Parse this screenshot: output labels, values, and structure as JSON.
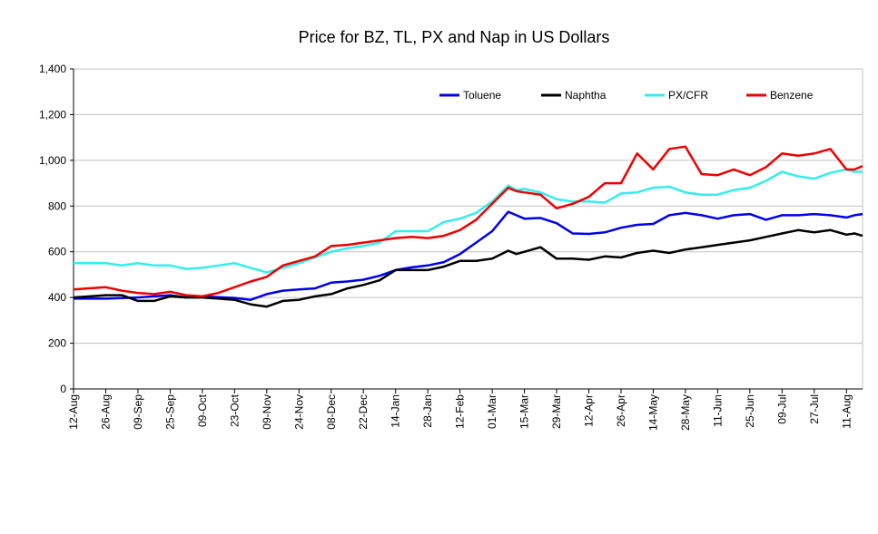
{
  "chart_data": {
    "type": "line",
    "title": "Price for BZ, TL, PX and Nap in US Dollars",
    "xlabel": "",
    "ylabel": "",
    "ylim": [
      0,
      1400
    ],
    "yticks": [
      0,
      200,
      400,
      600,
      800,
      1000,
      1200,
      1400
    ],
    "ytick_labels": [
      "0",
      "200",
      "400",
      "600",
      "800",
      "1,000",
      "1,200",
      "1,400"
    ],
    "grid": true,
    "legend_position": "top-right",
    "categories": [
      "12-Aug",
      "26-Aug",
      "09-Sep",
      "25-Sep",
      "09-Oct",
      "23-Oct",
      "09-Nov",
      "24-Nov",
      "08-Dec",
      "22-Dec",
      "14-Jan",
      "28-Jan",
      "12-Feb",
      "01-Mar",
      "15-Mar",
      "29-Mar",
      "12-Apr",
      "26-Apr",
      "14-May",
      "28-May",
      "11-Jun",
      "25-Jun",
      "09-Jul",
      "27-Jul",
      "11-Aug"
    ],
    "x_index": [
      0,
      4,
      8,
      12,
      16,
      20,
      24,
      28,
      32,
      36,
      40,
      44,
      48,
      52,
      56,
      60,
      64,
      68,
      72,
      76,
      80,
      84,
      88,
      92,
      96
    ],
    "series": [
      {
        "name": "Toluene",
        "color": "#0000ee",
        "values": [
          [
            0,
            395
          ],
          [
            4,
            395
          ],
          [
            8,
            400
          ],
          [
            12,
            410
          ],
          [
            14,
            400
          ],
          [
            16,
            405
          ],
          [
            20,
            398
          ],
          [
            22,
            390
          ],
          [
            24,
            415
          ],
          [
            26,
            430
          ],
          [
            28,
            435
          ],
          [
            30,
            440
          ],
          [
            32,
            465
          ],
          [
            34,
            470
          ],
          [
            36,
            478
          ],
          [
            38,
            495
          ],
          [
            40,
            520
          ],
          [
            42,
            532
          ],
          [
            44,
            540
          ],
          [
            46,
            555
          ],
          [
            48,
            590
          ],
          [
            50,
            640
          ],
          [
            52,
            690
          ],
          [
            54,
            775
          ],
          [
            55,
            760
          ],
          [
            56,
            745
          ],
          [
            58,
            748
          ],
          [
            60,
            725
          ],
          [
            62,
            680
          ],
          [
            64,
            678
          ],
          [
            66,
            685
          ],
          [
            68,
            705
          ],
          [
            70,
            718
          ],
          [
            72,
            722
          ],
          [
            74,
            760
          ],
          [
            76,
            770
          ],
          [
            78,
            760
          ],
          [
            80,
            745
          ],
          [
            82,
            760
          ],
          [
            84,
            765
          ],
          [
            86,
            740
          ],
          [
            88,
            760
          ],
          [
            90,
            760
          ],
          [
            92,
            765
          ],
          [
            94,
            760
          ],
          [
            96,
            750
          ],
          [
            97,
            760
          ],
          [
            98,
            765
          ]
        ]
      },
      {
        "name": "Naphtha",
        "color": "#000000",
        "values": [
          [
            0,
            400
          ],
          [
            4,
            410
          ],
          [
            6,
            410
          ],
          [
            8,
            385
          ],
          [
            10,
            385
          ],
          [
            12,
            405
          ],
          [
            14,
            400
          ],
          [
            16,
            400
          ],
          [
            18,
            395
          ],
          [
            20,
            390
          ],
          [
            22,
            370
          ],
          [
            24,
            360
          ],
          [
            26,
            385
          ],
          [
            28,
            390
          ],
          [
            30,
            405
          ],
          [
            32,
            415
          ],
          [
            34,
            440
          ],
          [
            36,
            455
          ],
          [
            38,
            475
          ],
          [
            40,
            520
          ],
          [
            42,
            520
          ],
          [
            44,
            520
          ],
          [
            46,
            535
          ],
          [
            48,
            560
          ],
          [
            50,
            560
          ],
          [
            52,
            570
          ],
          [
            54,
            605
          ],
          [
            55,
            590
          ],
          [
            56,
            600
          ],
          [
            58,
            620
          ],
          [
            60,
            570
          ],
          [
            62,
            570
          ],
          [
            64,
            565
          ],
          [
            66,
            580
          ],
          [
            68,
            575
          ],
          [
            70,
            595
          ],
          [
            72,
            605
          ],
          [
            74,
            595
          ],
          [
            76,
            610
          ],
          [
            78,
            620
          ],
          [
            80,
            630
          ],
          [
            82,
            640
          ],
          [
            84,
            650
          ],
          [
            86,
            665
          ],
          [
            88,
            680
          ],
          [
            90,
            695
          ],
          [
            92,
            685
          ],
          [
            94,
            695
          ],
          [
            96,
            675
          ],
          [
            97,
            680
          ],
          [
            98,
            670
          ]
        ]
      },
      {
        "name": "PX/CFR",
        "color": "#33eeee",
        "values": [
          [
            0,
            550
          ],
          [
            4,
            550
          ],
          [
            6,
            540
          ],
          [
            8,
            550
          ],
          [
            10,
            540
          ],
          [
            12,
            540
          ],
          [
            14,
            525
          ],
          [
            16,
            530
          ],
          [
            18,
            540
          ],
          [
            20,
            550
          ],
          [
            22,
            530
          ],
          [
            24,
            510
          ],
          [
            26,
            530
          ],
          [
            28,
            550
          ],
          [
            30,
            575
          ],
          [
            32,
            600
          ],
          [
            34,
            615
          ],
          [
            36,
            625
          ],
          [
            38,
            640
          ],
          [
            40,
            690
          ],
          [
            42,
            690
          ],
          [
            44,
            690
          ],
          [
            46,
            730
          ],
          [
            48,
            745
          ],
          [
            50,
            770
          ],
          [
            52,
            820
          ],
          [
            54,
            890
          ],
          [
            55,
            870
          ],
          [
            56,
            875
          ],
          [
            58,
            860
          ],
          [
            60,
            830
          ],
          [
            62,
            820
          ],
          [
            64,
            820
          ],
          [
            66,
            815
          ],
          [
            68,
            855
          ],
          [
            70,
            860
          ],
          [
            72,
            880
          ],
          [
            74,
            885
          ],
          [
            76,
            860
          ],
          [
            78,
            850
          ],
          [
            80,
            850
          ],
          [
            82,
            870
          ],
          [
            84,
            880
          ],
          [
            86,
            910
          ],
          [
            88,
            950
          ],
          [
            90,
            930
          ],
          [
            92,
            920
          ],
          [
            94,
            945
          ],
          [
            96,
            960
          ],
          [
            97,
            950
          ],
          [
            98,
            950
          ]
        ]
      },
      {
        "name": "Benzene",
        "color": "#ee0000",
        "values": [
          [
            0,
            435
          ],
          [
            4,
            445
          ],
          [
            6,
            430
          ],
          [
            8,
            420
          ],
          [
            10,
            415
          ],
          [
            12,
            425
          ],
          [
            14,
            410
          ],
          [
            16,
            405
          ],
          [
            18,
            420
          ],
          [
            20,
            445
          ],
          [
            22,
            470
          ],
          [
            24,
            490
          ],
          [
            26,
            540
          ],
          [
            28,
            560
          ],
          [
            30,
            580
          ],
          [
            32,
            625
          ],
          [
            34,
            630
          ],
          [
            36,
            640
          ],
          [
            38,
            650
          ],
          [
            40,
            660
          ],
          [
            42,
            665
          ],
          [
            44,
            660
          ],
          [
            46,
            670
          ],
          [
            48,
            695
          ],
          [
            50,
            740
          ],
          [
            52,
            810
          ],
          [
            54,
            880
          ],
          [
            55,
            865
          ],
          [
            56,
            860
          ],
          [
            58,
            850
          ],
          [
            60,
            790
          ],
          [
            62,
            810
          ],
          [
            64,
            840
          ],
          [
            66,
            900
          ],
          [
            68,
            900
          ],
          [
            70,
            1030
          ],
          [
            72,
            960
          ],
          [
            74,
            1050
          ],
          [
            76,
            1060
          ],
          [
            78,
            940
          ],
          [
            80,
            935
          ],
          [
            82,
            960
          ],
          [
            84,
            935
          ],
          [
            86,
            970
          ],
          [
            88,
            1030
          ],
          [
            90,
            1020
          ],
          [
            92,
            1030
          ],
          [
            94,
            1050
          ],
          [
            96,
            960
          ],
          [
            97,
            960
          ],
          [
            98,
            975
          ]
        ]
      }
    ]
  }
}
